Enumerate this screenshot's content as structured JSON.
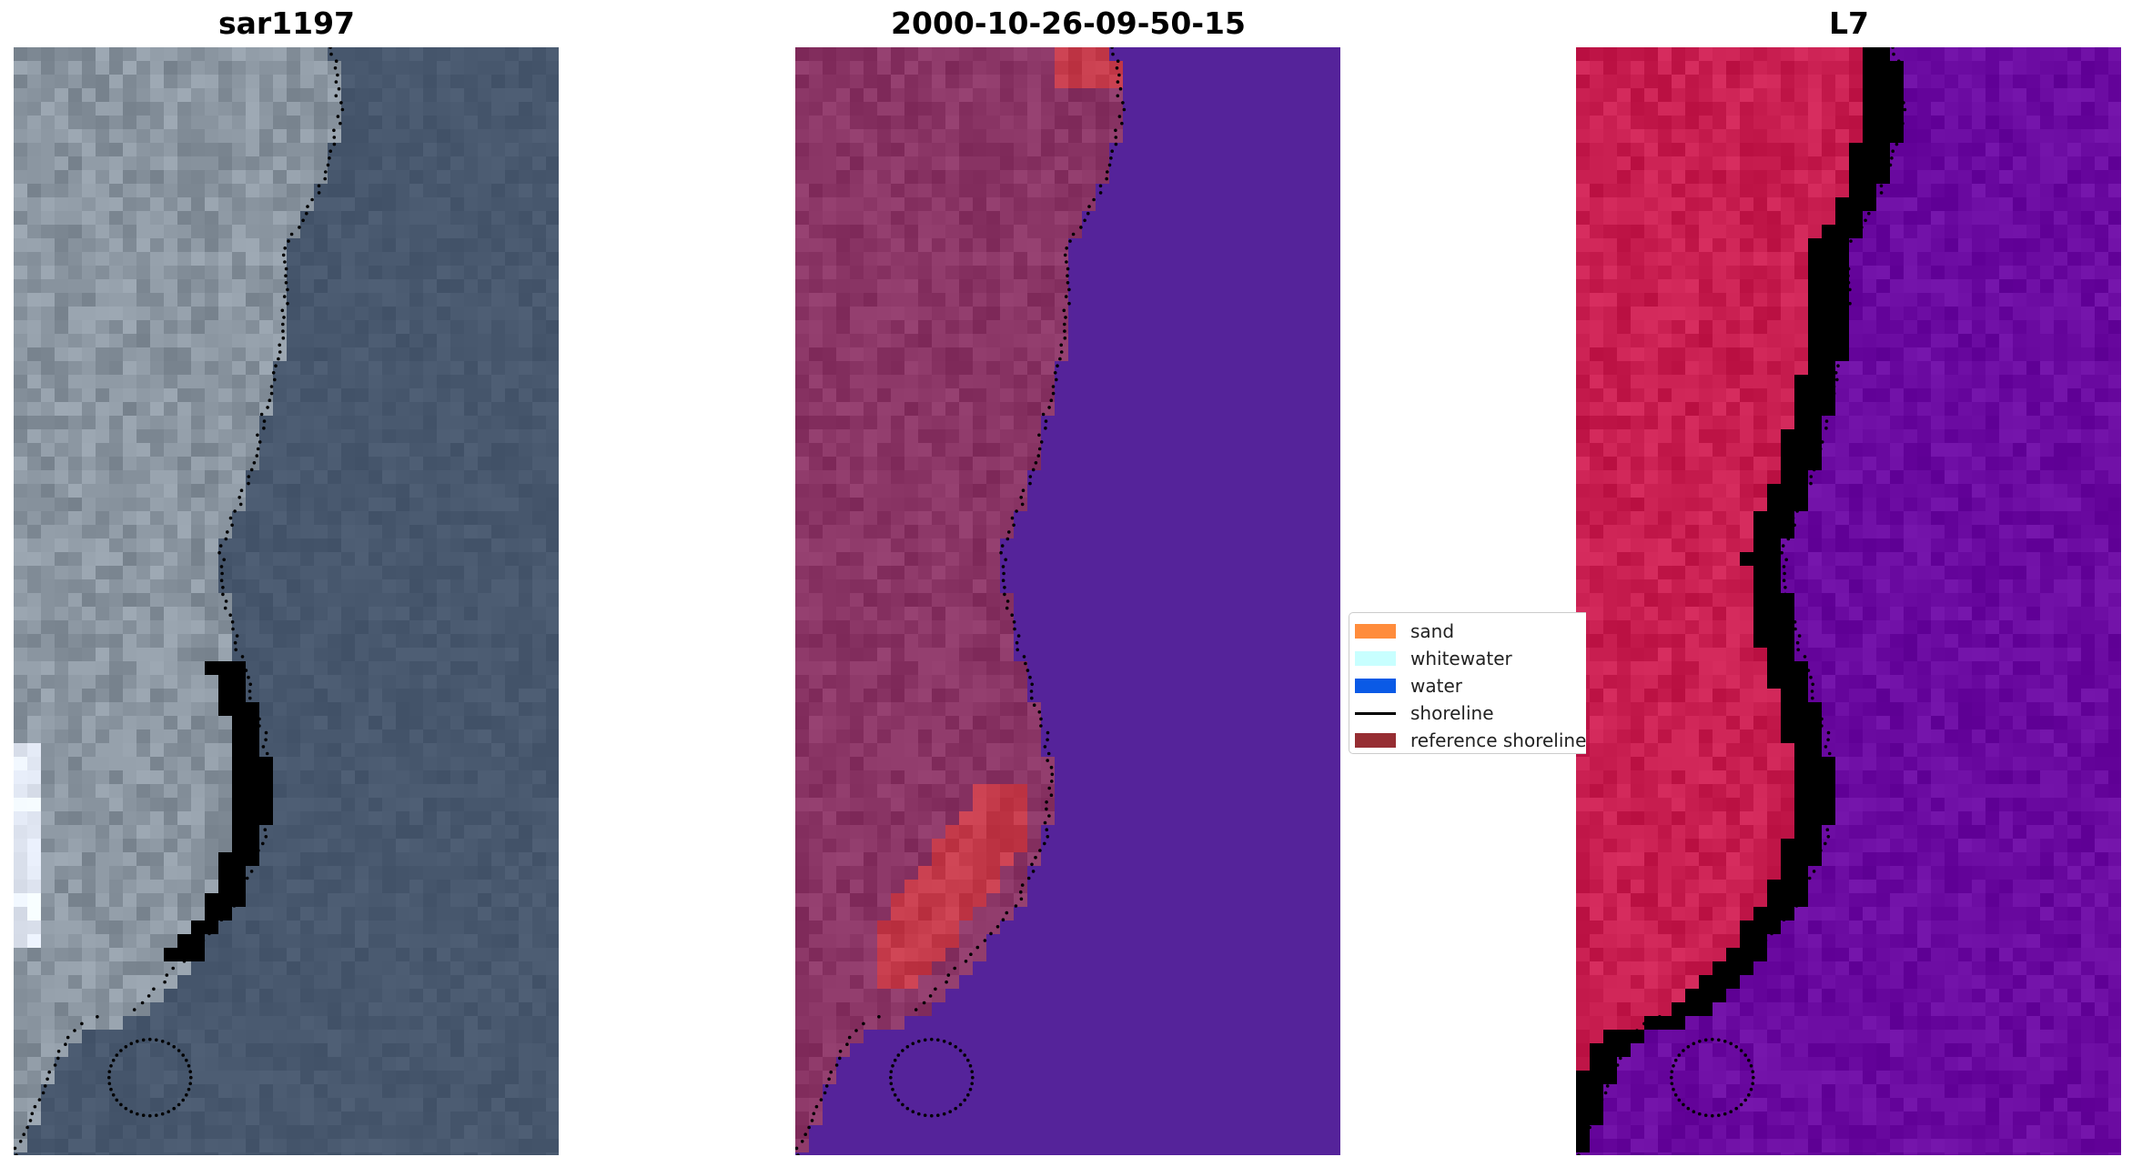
{
  "panels": [
    {
      "title": "sar1197",
      "kind": "rgb"
    },
    {
      "title": "2000-10-26-09-50-15",
      "kind": "classified"
    },
    {
      "title": "L7",
      "kind": "index"
    }
  ],
  "legend": {
    "items": [
      {
        "label": "sand",
        "color": "#ff8c3c",
        "type": "patch"
      },
      {
        "label": "whitewater",
        "color": "#c8ffff",
        "type": "patch"
      },
      {
        "label": "water",
        "color": "#0a5ae6",
        "type": "patch"
      },
      {
        "label": "shoreline",
        "color": "#000000",
        "type": "line"
      },
      {
        "label": "reference shoreline",
        "color": "#962d32",
        "type": "patch"
      }
    ]
  },
  "colors": {
    "rgb_water": "#48586e",
    "rgb_land": "#8a95a0",
    "rgb_sand": "#e8d4a0",
    "class_land": "#8a3565",
    "class_water": "#55239a",
    "class_sand_red": "#c43a4a",
    "index_land": "#c81e50",
    "index_water": "#6a0aa0",
    "shoreline_dots": "#000000"
  }
}
